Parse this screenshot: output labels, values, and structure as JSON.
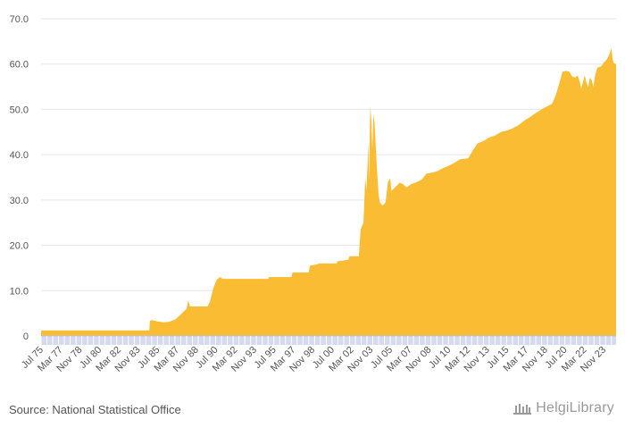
{
  "chart_data": {
    "type": "area",
    "title": "",
    "xlabel": "",
    "ylabel": "",
    "ylim": [
      0,
      70
    ],
    "yticks": [
      "0",
      "10.0",
      "20.0",
      "30.0",
      "40.0",
      "50.0",
      "60.0",
      "70.0"
    ],
    "xlim": [
      1975.5,
      2024.9
    ],
    "xticks": [
      {
        "label": "Jul 75",
        "x": 1975.5
      },
      {
        "label": "Mar 77",
        "x": 1977.17
      },
      {
        "label": "Nov 78",
        "x": 1978.83
      },
      {
        "label": "Jul 80",
        "x": 1980.5
      },
      {
        "label": "Mar 82",
        "x": 1982.17
      },
      {
        "label": "Nov 83",
        "x": 1983.83
      },
      {
        "label": "Jul 85",
        "x": 1985.5
      },
      {
        "label": "Mar 87",
        "x": 1987.17
      },
      {
        "label": "Nov 88",
        "x": 1988.83
      },
      {
        "label": "Jul 90",
        "x": 1990.5
      },
      {
        "label": "Mar 92",
        "x": 1992.17
      },
      {
        "label": "Nov 93",
        "x": 1993.83
      },
      {
        "label": "Jul 95",
        "x": 1995.5
      },
      {
        "label": "Mar 97",
        "x": 1997.17
      },
      {
        "label": "Nov 98",
        "x": 1998.83
      },
      {
        "label": "Jul 00",
        "x": 2000.5
      },
      {
        "label": "Mar 02",
        "x": 2002.17
      },
      {
        "label": "Nov 03",
        "x": 2003.83
      },
      {
        "label": "Jul 05",
        "x": 2005.5
      },
      {
        "label": "Mar 07",
        "x": 2007.17
      },
      {
        "label": "Nov 08",
        "x": 2008.83
      },
      {
        "label": "Jul 10",
        "x": 2010.5
      },
      {
        "label": "Mar 12",
        "x": 2012.17
      },
      {
        "label": "Nov 13",
        "x": 2013.83
      },
      {
        "label": "Jul 15",
        "x": 2015.5
      },
      {
        "label": "Mar 17",
        "x": 2017.17
      },
      {
        "label": "Nov 18",
        "x": 2018.83
      },
      {
        "label": "Jul 20",
        "x": 2020.5
      },
      {
        "label": "Mar 22",
        "x": 2022.17
      },
      {
        "label": "Nov 23",
        "x": 2023.83
      }
    ],
    "grid": true,
    "legend": "none",
    "series": [
      {
        "color": "#f9bc32",
        "points": [
          [
            1975.5,
            1.2
          ],
          [
            1984.8,
            1.2
          ],
          [
            1984.85,
            3.3
          ],
          [
            1985.0,
            3.5
          ],
          [
            1985.5,
            3.2
          ],
          [
            1986.0,
            3.0
          ],
          [
            1986.5,
            3.1
          ],
          [
            1987.0,
            3.6
          ],
          [
            1987.4,
            4.5
          ],
          [
            1987.8,
            5.5
          ],
          [
            1988.0,
            6.0
          ],
          [
            1988.15,
            7.8
          ],
          [
            1988.3,
            6.5
          ],
          [
            1989.8,
            6.5
          ],
          [
            1990.0,
            7.5
          ],
          [
            1990.3,
            10.5
          ],
          [
            1990.6,
            12.5
          ],
          [
            1990.9,
            13.0
          ],
          [
            1991.1,
            12.6
          ],
          [
            1995.0,
            12.6
          ],
          [
            1995.1,
            13.0
          ],
          [
            1997.0,
            13.0
          ],
          [
            1997.1,
            14.0
          ],
          [
            1998.5,
            14.0
          ],
          [
            1998.6,
            15.5
          ],
          [
            1999.2,
            15.8
          ],
          [
            1999.4,
            16.0
          ],
          [
            2000.9,
            16.0
          ],
          [
            2001.0,
            16.5
          ],
          [
            2001.9,
            16.8
          ],
          [
            2002.0,
            17.6
          ],
          [
            2002.8,
            17.6
          ],
          [
            2002.95,
            23.5
          ],
          [
            2003.2,
            25.0
          ],
          [
            2003.35,
            35.0
          ],
          [
            2003.45,
            32.0
          ],
          [
            2003.55,
            38.0
          ],
          [
            2003.62,
            43.0
          ],
          [
            2003.68,
            34.0
          ],
          [
            2003.78,
            50.5
          ],
          [
            2003.88,
            47.5
          ],
          [
            2003.96,
            41.0
          ],
          [
            2004.05,
            49.0
          ],
          [
            2004.15,
            47.0
          ],
          [
            2004.25,
            42.0
          ],
          [
            2004.35,
            37.0
          ],
          [
            2004.5,
            31.0
          ],
          [
            2004.6,
            29.5
          ],
          [
            2004.8,
            28.8
          ],
          [
            2004.95,
            29.0
          ],
          [
            2005.1,
            29.5
          ],
          [
            2005.3,
            34.0
          ],
          [
            2005.5,
            34.8
          ],
          [
            2005.6,
            32.0
          ],
          [
            2006.0,
            33.0
          ],
          [
            2006.3,
            33.8
          ],
          [
            2006.6,
            33.5
          ],
          [
            2006.9,
            32.8
          ],
          [
            2007.3,
            33.5
          ],
          [
            2007.8,
            34.0
          ],
          [
            2008.2,
            34.5
          ],
          [
            2008.6,
            35.8
          ],
          [
            2009.0,
            36.0
          ],
          [
            2009.5,
            36.3
          ],
          [
            2010.0,
            37.0
          ],
          [
            2010.5,
            37.5
          ],
          [
            2011.0,
            38.2
          ],
          [
            2011.5,
            39.0
          ],
          [
            2012.2,
            39.2
          ],
          [
            2012.6,
            41.0
          ],
          [
            2013.0,
            42.5
          ],
          [
            2013.5,
            43.0
          ],
          [
            2014.0,
            43.8
          ],
          [
            2014.5,
            44.2
          ],
          [
            2015.0,
            45.0
          ],
          [
            2015.5,
            45.3
          ],
          [
            2016.0,
            45.8
          ],
          [
            2016.5,
            46.5
          ],
          [
            2017.0,
            47.5
          ],
          [
            2017.5,
            48.3
          ],
          [
            2018.0,
            49.2
          ],
          [
            2018.5,
            50.0
          ],
          [
            2019.0,
            50.7
          ],
          [
            2019.4,
            51.2
          ],
          [
            2019.7,
            53.0
          ],
          [
            2020.0,
            55.5
          ],
          [
            2020.3,
            58.3
          ],
          [
            2020.6,
            58.5
          ],
          [
            2020.9,
            58.3
          ],
          [
            2021.1,
            57.3
          ],
          [
            2021.4,
            57.0
          ],
          [
            2021.6,
            57.5
          ],
          [
            2021.8,
            56.0
          ],
          [
            2021.9,
            54.5
          ],
          [
            2022.0,
            55.5
          ],
          [
            2022.2,
            57.5
          ],
          [
            2022.35,
            56.0
          ],
          [
            2022.5,
            54.8
          ],
          [
            2022.65,
            57.0
          ],
          [
            2022.8,
            56.5
          ],
          [
            2022.95,
            55.0
          ],
          [
            2023.1,
            57.5
          ],
          [
            2023.3,
            59.2
          ],
          [
            2023.6,
            59.5
          ],
          [
            2023.9,
            60.5
          ],
          [
            2024.1,
            61.0
          ],
          [
            2024.3,
            62.0
          ],
          [
            2024.5,
            63.5
          ],
          [
            2024.6,
            61.0
          ],
          [
            2024.7,
            60.2
          ],
          [
            2024.9,
            60.0
          ]
        ]
      }
    ]
  },
  "footer": {
    "source": "Source: National Statistical Office",
    "brand": "HelgiLibrary"
  }
}
